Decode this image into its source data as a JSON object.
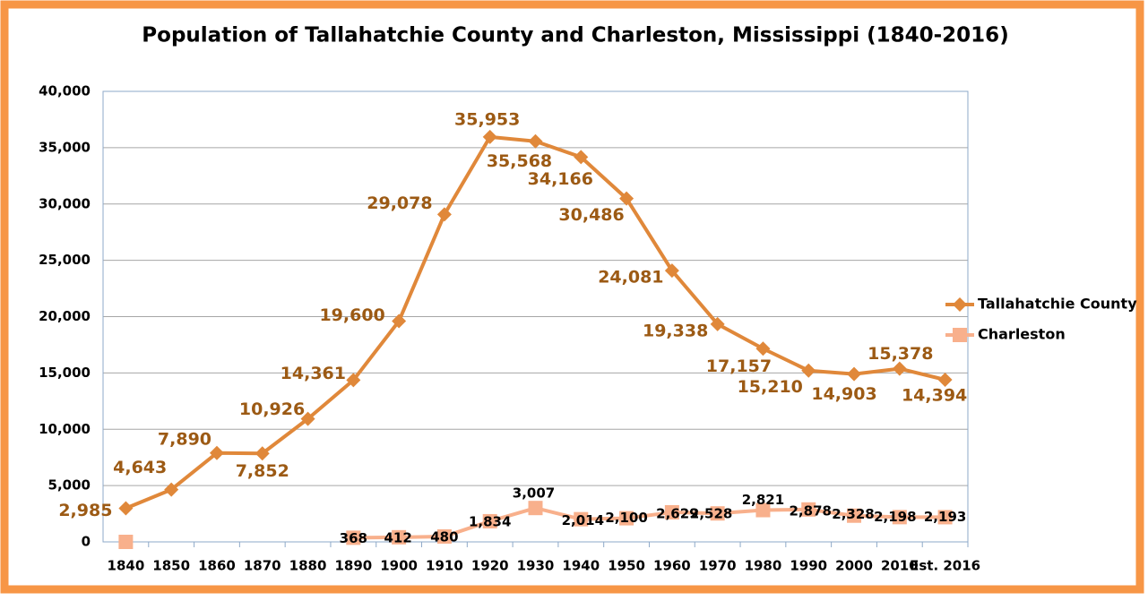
{
  "chart_data": {
    "type": "line",
    "title": "Population of Tallahatchie County and Charleston, Mississippi (1840-2016)",
    "categories": [
      "1840",
      "1850",
      "1860",
      "1870",
      "1880",
      "1890",
      "1900",
      "1910",
      "1920",
      "1930",
      "1940",
      "1950",
      "1960",
      "1970",
      "1980",
      "1990",
      "2000",
      "2010",
      "Est. 2016"
    ],
    "series": [
      {
        "name": "Tallahatchie County",
        "color": "#e0883a",
        "marker": "diamond",
        "values": [
          2985,
          4643,
          7890,
          7852,
          10926,
          14361,
          19600,
          29078,
          35953,
          35568,
          34166,
          30486,
          24081,
          19338,
          17157,
          15210,
          14903,
          15378,
          14394
        ],
        "value_labels": [
          "2,985",
          "4,643",
          "7,890",
          "7,852",
          "10,926",
          "14,361",
          "19,600",
          "29,078",
          "35,953",
          "35,568",
          "34,166",
          "30,486",
          "24,081",
          "19,338",
          "17,157",
          "15,210",
          "14,903",
          "15,378",
          "14,394"
        ]
      },
      {
        "name": "Charleston",
        "color": "#f8b08c",
        "marker": "square",
        "values": [
          0,
          null,
          null,
          null,
          null,
          368,
          412,
          480,
          1834,
          3007,
          2014,
          2100,
          2629,
          2528,
          2821,
          2878,
          2328,
          2198,
          2193
        ],
        "value_labels": [
          null,
          null,
          null,
          null,
          null,
          "368",
          "412",
          "480",
          "1,834",
          "3,007",
          "2,014",
          "2,100",
          "2,629",
          "2,528",
          "2,821",
          "2,878",
          "2,328",
          "2,198",
          "2,193"
        ]
      }
    ],
    "ylim": [
      0,
      40000
    ],
    "yticks": [
      0,
      {
        "value": 5000,
        "label": "5,000"
      },
      {
        "value": 10000,
        "label": "10,000"
      },
      {
        "value": 15000,
        "label": "15,000"
      },
      {
        "value": 20000,
        "label": "20,000"
      },
      {
        "value": 25000,
        "label": "25,000"
      },
      {
        "value": 30000,
        "label": "30,000"
      },
      {
        "value": 35000,
        "label": "35,000"
      },
      {
        "value": 40000,
        "label": "40,000"
      }
    ],
    "grid": true,
    "legend": "right"
  }
}
